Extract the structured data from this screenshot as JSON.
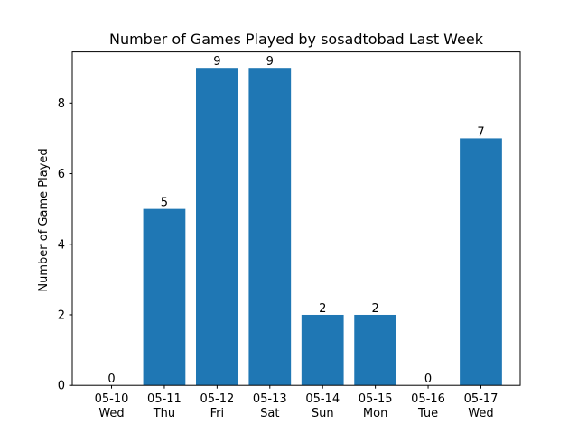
{
  "chart_data": {
    "type": "bar",
    "title": "Number of Games Played by sosadtobad Last Week",
    "xlabel": "",
    "ylabel": "Number of Game Played",
    "categories": [
      [
        "05-10",
        "Wed"
      ],
      [
        "05-11",
        "Thu"
      ],
      [
        "05-12",
        "Fri"
      ],
      [
        "05-13",
        "Sat"
      ],
      [
        "05-14",
        "Sun"
      ],
      [
        "05-15",
        "Mon"
      ],
      [
        "05-16",
        "Tue"
      ],
      [
        "05-17",
        "Wed"
      ]
    ],
    "values": [
      0,
      5,
      9,
      9,
      2,
      2,
      0,
      7
    ],
    "ylim": [
      0,
      9.45
    ],
    "yticks": [
      0,
      2,
      4,
      6,
      8
    ],
    "bar_color": "#1f77b4",
    "grid": false,
    "legend": "none"
  }
}
